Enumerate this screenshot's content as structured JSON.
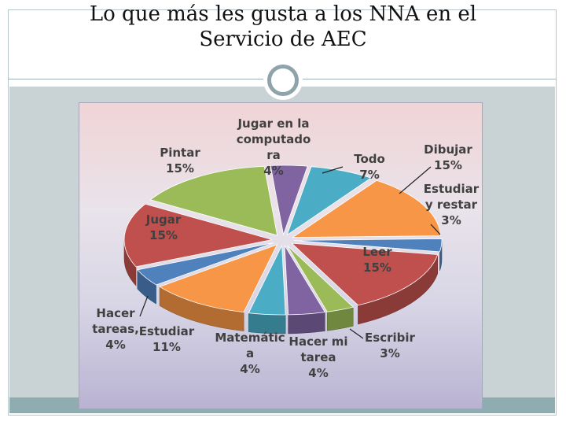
{
  "slide": {
    "title_line1": "Lo que más les gusta a los NNA en el",
    "title_line2": "Servicio de AEC"
  },
  "colors": {
    "background": "#ffffff",
    "content_band": "#c9d3d6",
    "bottom_band": "#8fadb0"
  },
  "chart_data": {
    "type": "pie",
    "style": "3d-exploded",
    "title": "Lo que más les gusta a los NNA en el Servicio de AEC",
    "slices": [
      {
        "name": "Jugar en la computadora",
        "label_lines": [
          "Jugar en la",
          "computado",
          "ra"
        ],
        "value": 4,
        "pct_label": "4%",
        "color": "#8064a2"
      },
      {
        "name": "Todo",
        "label_lines": [
          "Todo"
        ],
        "value": 7,
        "pct_label": "7%",
        "color": "#4bacc6"
      },
      {
        "name": "Dibujar",
        "label_lines": [
          "Dibujar"
        ],
        "value": 15,
        "pct_label": "15%",
        "color": "#f79646"
      },
      {
        "name": "Estudiar y restar",
        "label_lines": [
          "Estudiar",
          "y restar"
        ],
        "value": 3,
        "pct_label": "3%",
        "color": "#4f81bd"
      },
      {
        "name": "Leer",
        "label_lines": [
          "Leer"
        ],
        "value": 15,
        "pct_label": "15%",
        "color": "#c0504d"
      },
      {
        "name": "Escribir",
        "label_lines": [
          "Escribir"
        ],
        "value": 3,
        "pct_label": "3%",
        "color": "#9bbb59"
      },
      {
        "name": "Hacer mi tarea",
        "label_lines": [
          "Hacer mi",
          "tarea"
        ],
        "value": 4,
        "pct_label": "4%",
        "color": "#8064a2"
      },
      {
        "name": "Matemática",
        "label_lines": [
          "Matemátic",
          "a"
        ],
        "value": 4,
        "pct_label": "4%",
        "color": "#4bacc6"
      },
      {
        "name": "Estudiar",
        "label_lines": [
          "Estudiar"
        ],
        "value": 11,
        "pct_label": "11%",
        "color": "#f79646"
      },
      {
        "name": "Hacer tareas",
        "label_lines": [
          "Hacer",
          "tareas,"
        ],
        "value": 4,
        "pct_label": "4%",
        "color": "#4f81bd"
      },
      {
        "name": "Jugar",
        "label_lines": [
          "Jugar"
        ],
        "value": 15,
        "pct_label": "15%",
        "color": "#c0504d"
      },
      {
        "name": "Pintar",
        "label_lines": [
          "Pintar"
        ],
        "value": 15,
        "pct_label": "15%",
        "color": "#9bbb59"
      }
    ]
  }
}
